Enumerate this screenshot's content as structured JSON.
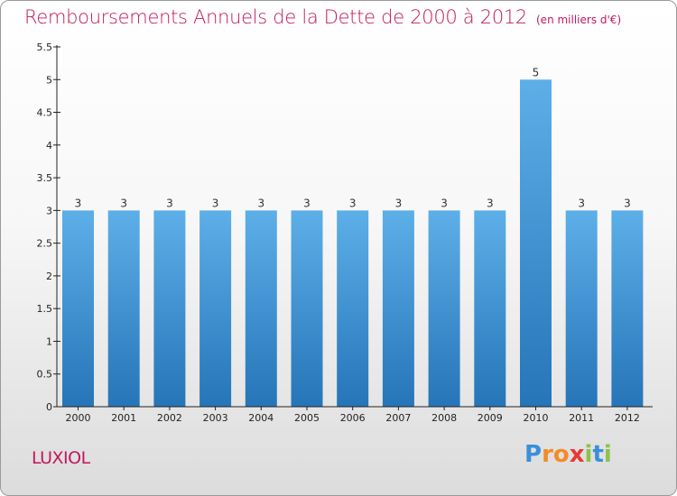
{
  "title": "Remboursements Annuels de la Dette de 2000 à 2012",
  "unit": "(en milliers d'€)",
  "commune": "LUXIOL",
  "logo": {
    "letters": [
      "P",
      "r",
      "o",
      "x",
      "i",
      "t",
      "i"
    ],
    "colors": [
      "#3b8fd9",
      "#f28c28",
      "#f28c28",
      "#e53935",
      "#8bc34a",
      "#3b8fd9",
      "#8bc34a"
    ]
  },
  "colors": {
    "bar_light": "#5dafe8",
    "bar_dark": "#2575b8",
    "title": "#c2185b",
    "axis": "#222222"
  },
  "chart_data": {
    "type": "bar",
    "categories": [
      "2000",
      "2001",
      "2002",
      "2003",
      "2004",
      "2005",
      "2006",
      "2007",
      "2008",
      "2009",
      "2010",
      "2011",
      "2012"
    ],
    "values": [
      3,
      3,
      3,
      3,
      3,
      3,
      3,
      3,
      3,
      3,
      5,
      3,
      3
    ],
    "data_labels": [
      "3",
      "3",
      "3",
      "3",
      "3",
      "3",
      "3",
      "3",
      "3",
      "3",
      "5",
      "3",
      "3"
    ],
    "yticks": [
      "0",
      "0.5",
      "1",
      "1.5",
      "2",
      "2.5",
      "3",
      "3.5",
      "4",
      "4.5",
      "5",
      "5.5"
    ],
    "ylim": [
      0,
      5.5
    ],
    "grid": false,
    "xlabel": "",
    "ylabel": ""
  }
}
